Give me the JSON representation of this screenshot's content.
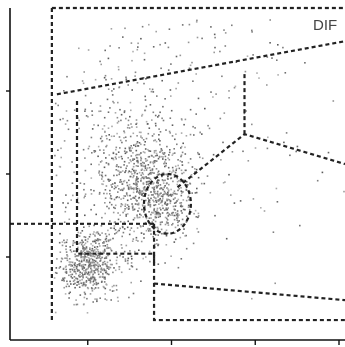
{
  "chart_data": {
    "type": "scatter",
    "title": "DIF",
    "xlabel": "",
    "ylabel": "",
    "xlim": [
      0,
      1
    ],
    "ylim": [
      0,
      1
    ],
    "x_ticks": [
      "",
      "",
      "",
      ""
    ],
    "y_ticks": [
      "",
      "",
      ""
    ],
    "grid": false,
    "series": [
      {
        "name": "",
        "clusters": [
          {
            "center": [
              0.23,
              0.23
            ],
            "spread": [
              0.045,
              0.05
            ],
            "count": 550
          },
          {
            "center": [
              0.4,
              0.47
            ],
            "spread": [
              0.075,
              0.09
            ],
            "count": 750
          },
          {
            "center": [
              0.48,
              0.4
            ],
            "spread": [
              0.03,
              0.04
            ],
            "count": 120
          },
          {
            "center": [
              0.35,
              0.66
            ],
            "spread": [
              0.14,
              0.12
            ],
            "count": 220
          },
          {
            "center": [
              0.48,
              0.88
            ],
            "spread": [
              0.16,
              0.07
            ],
            "count": 70
          },
          {
            "center": [
              0.7,
              0.55
            ],
            "spread": [
              0.15,
              0.15
            ],
            "count": 60
          },
          {
            "center": [
              0.3,
              0.35
            ],
            "spread": [
              0.12,
              0.12
            ],
            "count": 90
          }
        ]
      }
    ],
    "gates": [
      {
        "name": "outer",
        "style": "dashed",
        "points": [
          [
            0.125,
            1.0
          ],
          [
            1.0,
            1.0
          ]
        ]
      },
      {
        "name": "outer-left",
        "style": "dashed",
        "points": [
          [
            0.125,
            1.0
          ],
          [
            0.125,
            0.06
          ]
        ]
      },
      {
        "name": "upper-boundary",
        "style": "dashed",
        "points": [
          [
            0.14,
            0.74
          ],
          [
            1.0,
            0.9
          ]
        ]
      },
      {
        "name": "inner-box",
        "style": "dashed",
        "points": [
          [
            0.2,
            0.72
          ],
          [
            0.2,
            0.26
          ],
          [
            0.43,
            0.26
          ],
          [
            0.43,
            0.06
          ],
          [
            1.0,
            0.06
          ]
        ]
      },
      {
        "name": "diagonal",
        "style": "dashed",
        "points": [
          [
            0.5,
            0.46
          ],
          [
            0.7,
            0.62
          ],
          [
            1.0,
            0.53
          ]
        ]
      },
      {
        "name": "right-vertical",
        "style": "dashed",
        "points": [
          [
            0.7,
            0.62
          ],
          [
            0.7,
            0.81
          ]
        ]
      },
      {
        "name": "lower-right",
        "style": "dashed",
        "points": [
          [
            0.43,
            0.17
          ],
          [
            1.0,
            0.12
          ]
        ]
      },
      {
        "name": "left-lower",
        "style": "dashed",
        "points": [
          [
            0.0,
            0.35
          ],
          [
            0.43,
            0.35
          ]
        ]
      },
      {
        "name": "mid-vertical",
        "style": "dashed",
        "points": [
          [
            0.43,
            0.35
          ],
          [
            0.43,
            0.23
          ]
        ]
      },
      {
        "name": "ellipse",
        "style": "dashed-solid",
        "center": [
          0.47,
          0.41
        ],
        "radius": [
          0.07,
          0.09
        ]
      }
    ]
  }
}
